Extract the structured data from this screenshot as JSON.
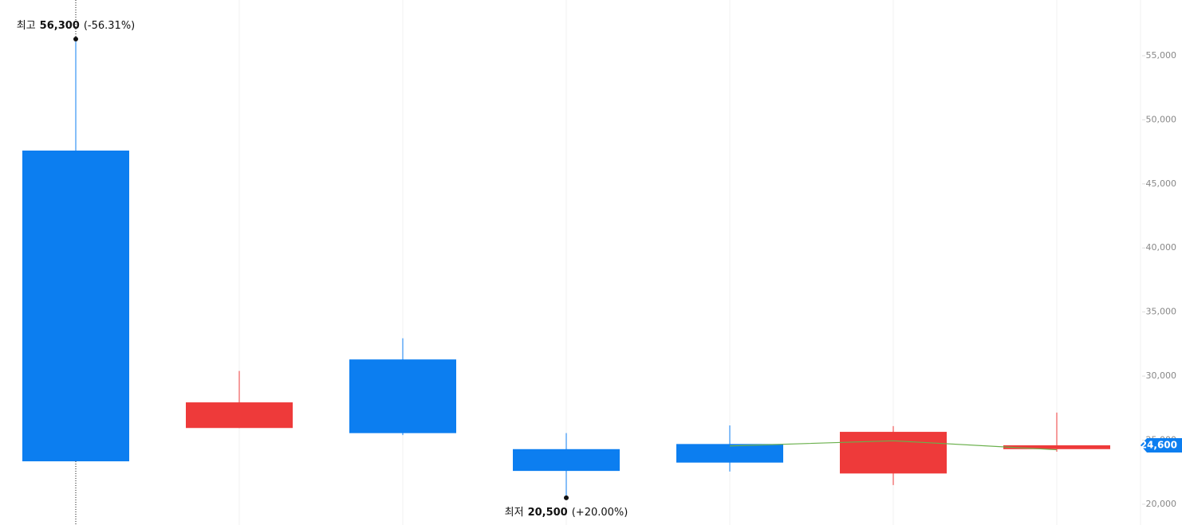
{
  "chart_data": {
    "type": "candlestick",
    "ylim": [
      18380,
      59350
    ],
    "yticks": [
      {
        "value": 20000,
        "label": "20,000"
      },
      {
        "value": 25000,
        "label": "25,000"
      },
      {
        "value": 30000,
        "label": "30,000"
      },
      {
        "value": 35000,
        "label": "35,000"
      },
      {
        "value": 40000,
        "label": "40,000"
      },
      {
        "value": 45000,
        "label": "45,000"
      },
      {
        "value": 50000,
        "label": "50,000"
      },
      {
        "value": 55000,
        "label": "55,000"
      }
    ],
    "up_color": "#ee3a3a",
    "down_color": "#0c7ef0",
    "candles": [
      {
        "open": 47600,
        "high": 56300,
        "low": 23350,
        "close": 23350
      },
      {
        "open": 25950,
        "high": 30400,
        "low": 25950,
        "close": 27950
      },
      {
        "open": 31300,
        "high": 32950,
        "low": 25400,
        "close": 25550
      },
      {
        "open": 24300,
        "high": 25550,
        "low": 20500,
        "close": 22600
      },
      {
        "open": 24700,
        "high": 26150,
        "low": 22550,
        "close": 23250
      },
      {
        "open": 22400,
        "high": 26100,
        "low": 21500,
        "close": 25650
      },
      {
        "open": 24300,
        "high": 27150,
        "low": 24100,
        "close": 24600
      }
    ],
    "moving_average": {
      "color": "#6ab04c",
      "values": [
        null,
        null,
        null,
        null,
        24550,
        24950,
        24250
      ]
    },
    "high_note": {
      "label": "최고",
      "value": 56300,
      "value_label": "56,300",
      "change": "(-56.31%)",
      "candle": 0
    },
    "low_note": {
      "label": "최저",
      "value": 20500,
      "value_label": "20,500",
      "change": "(+20.00%)",
      "candle": 3
    },
    "current_price": {
      "value": 24600,
      "label": "24,600",
      "color": "#0c7ef0"
    }
  }
}
